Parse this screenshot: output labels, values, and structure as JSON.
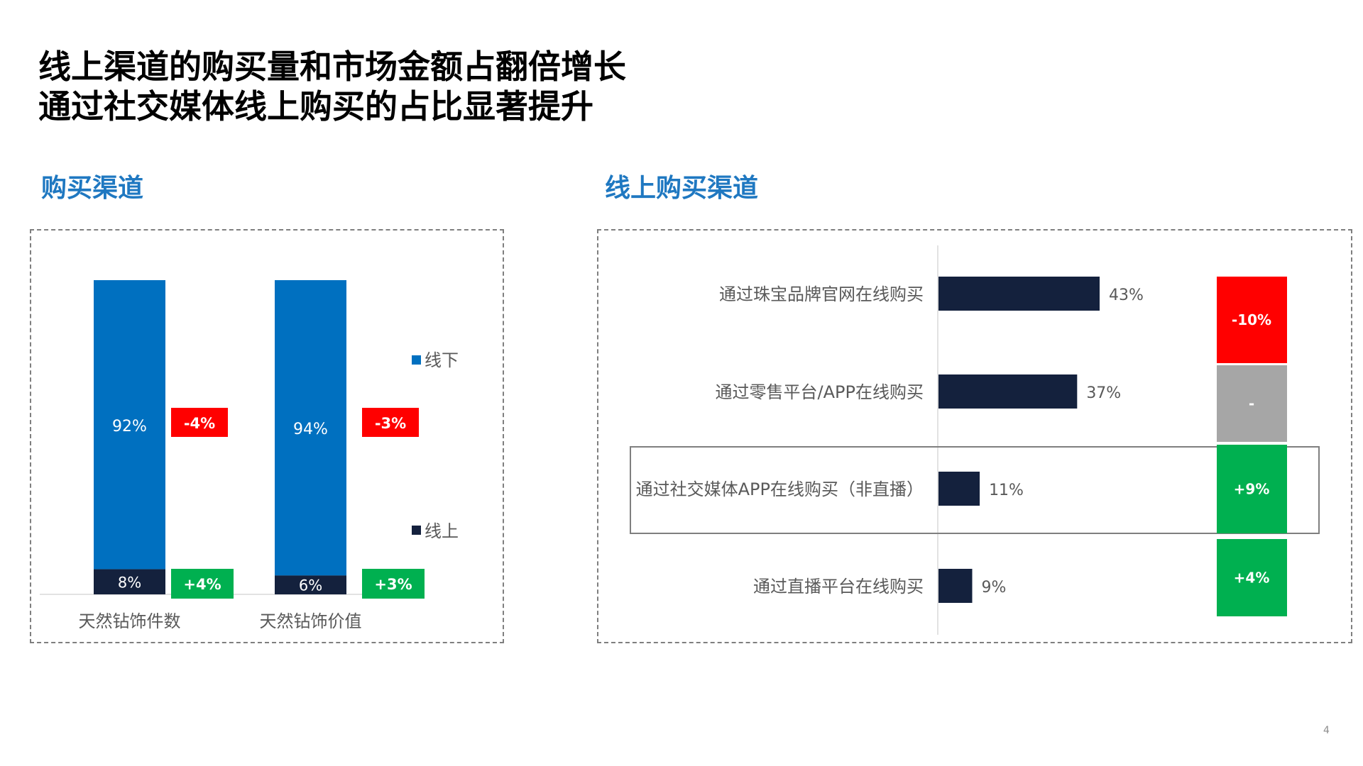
{
  "slide": {
    "title_lines": [
      "线上渠道的购买量和市场金额占翻倍增长",
      "通过社交媒体线上购买的占比显著提升"
    ],
    "page_number": "4"
  },
  "colors": {
    "offline": "#0070c0",
    "online": "#14213d",
    "decrease": "#ff0000",
    "increase": "#00b050",
    "neutral": "#a6a6a6",
    "section_title": "#1f78c1"
  },
  "chart_data": [
    {
      "type": "bar",
      "stacked": true,
      "section_title": "购买渠道",
      "categories": [
        "天然钻饰件数",
        "天然钻饰价值"
      ],
      "series": [
        {
          "name": "线下",
          "values": [
            92,
            94
          ],
          "labels": [
            "92%",
            "94%"
          ]
        },
        {
          "name": "线上",
          "values": [
            8,
            6
          ],
          "labels": [
            "8%",
            "6%"
          ]
        }
      ],
      "changes": {
        "线下": [
          "-4%",
          "-3%"
        ],
        "线上": [
          "+4%",
          "+3%"
        ]
      },
      "ylim": [
        0,
        100
      ],
      "legend_position": "right",
      "grid": false
    },
    {
      "type": "bar",
      "orientation": "horizontal",
      "section_title": "线上购买渠道",
      "categories": [
        "通过珠宝品牌官网在线购买",
        "通过零售平台/APP在线购买",
        "通过社交媒体APP在线购买（非直播）",
        "通过直播平台在线购买"
      ],
      "values": [
        43,
        37,
        11,
        9
      ],
      "labels": [
        "43%",
        "37%",
        "11%",
        "9%"
      ],
      "changes": [
        "-10%",
        "-",
        "+9%",
        "+4%"
      ],
      "change_types": [
        "decrease",
        "neutral",
        "increase",
        "increase"
      ],
      "highlighted": "通过社交媒体APP在线购买（非直播）",
      "grid": false
    }
  ]
}
